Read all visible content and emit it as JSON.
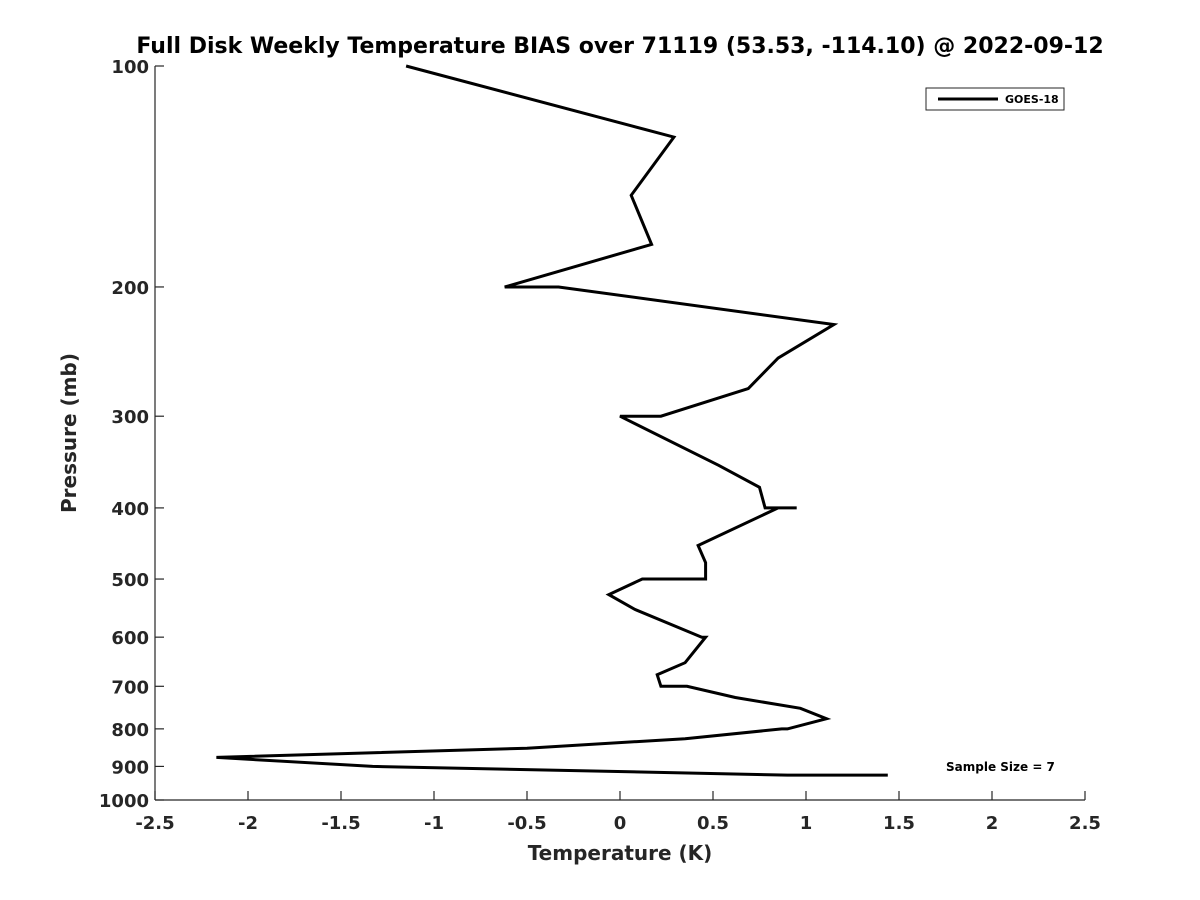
{
  "chart_data": {
    "type": "line",
    "title": "Full Disk Weekly Temperature BIAS over 71119 (53.53, -114.10) @ 2022-09-12",
    "xlabel": "Temperature (K)",
    "ylabel": "Pressure (mb)",
    "xlim": [
      -2.5,
      2.5
    ],
    "ylim": [
      100,
      1000
    ],
    "y_scale": "log",
    "y_reversed": true,
    "x_ticks": [
      -2.5,
      -2,
      -1.5,
      -1,
      -0.5,
      0,
      0.5,
      1,
      1.5,
      2,
      2.5
    ],
    "x_tick_labels": [
      "-2.5",
      "-2",
      "-1.5",
      "-1",
      "-0.5",
      "0",
      "0.5",
      "1",
      "1.5",
      "2",
      "2.5"
    ],
    "y_ticks": [
      100,
      200,
      300,
      400,
      500,
      600,
      700,
      800,
      900,
      1000
    ],
    "y_tick_labels": [
      "100",
      "200",
      "300",
      "400",
      "500",
      "600",
      "700",
      "800",
      "900",
      "1000"
    ],
    "grid": false,
    "legend_position": "top-right",
    "annotation": "Sample Size = 7",
    "series": [
      {
        "name": "GOES-18",
        "color": "#000000",
        "points": [
          {
            "x": -1.15,
            "y": 100
          },
          {
            "x": 0.29,
            "y": 125
          },
          {
            "x": 0.06,
            "y": 150
          },
          {
            "x": 0.17,
            "y": 175
          },
          {
            "x": -0.62,
            "y": 200
          },
          {
            "x": -0.33,
            "y": 200
          },
          {
            "x": 1.15,
            "y": 225
          },
          {
            "x": 0.85,
            "y": 250
          },
          {
            "x": 0.69,
            "y": 275
          },
          {
            "x": 0.22,
            "y": 300
          },
          {
            "x": 0.0,
            "y": 300
          },
          {
            "x": 0.53,
            "y": 350
          },
          {
            "x": 0.75,
            "y": 375
          },
          {
            "x": 0.78,
            "y": 400
          },
          {
            "x": 0.95,
            "y": 400
          },
          {
            "x": 0.85,
            "y": 400
          },
          {
            "x": 0.42,
            "y": 450
          },
          {
            "x": 0.46,
            "y": 475
          },
          {
            "x": 0.46,
            "y": 500
          },
          {
            "x": 0.12,
            "y": 500
          },
          {
            "x": -0.06,
            "y": 525
          },
          {
            "x": 0.08,
            "y": 550
          },
          {
            "x": 0.44,
            "y": 600
          },
          {
            "x": 0.46,
            "y": 600
          },
          {
            "x": 0.35,
            "y": 650
          },
          {
            "x": 0.2,
            "y": 675
          },
          {
            "x": 0.22,
            "y": 700
          },
          {
            "x": 0.36,
            "y": 700
          },
          {
            "x": 0.62,
            "y": 725
          },
          {
            "x": 0.97,
            "y": 750
          },
          {
            "x": 1.11,
            "y": 775
          },
          {
            "x": 0.9,
            "y": 800
          },
          {
            "x": 0.87,
            "y": 800
          },
          {
            "x": 0.35,
            "y": 825
          },
          {
            "x": -0.5,
            "y": 850
          },
          {
            "x": -2.17,
            "y": 875
          },
          {
            "x": -1.33,
            "y": 900
          },
          {
            "x": 0.9,
            "y": 925
          },
          {
            "x": 1.44,
            "y": 925
          }
        ]
      }
    ]
  }
}
